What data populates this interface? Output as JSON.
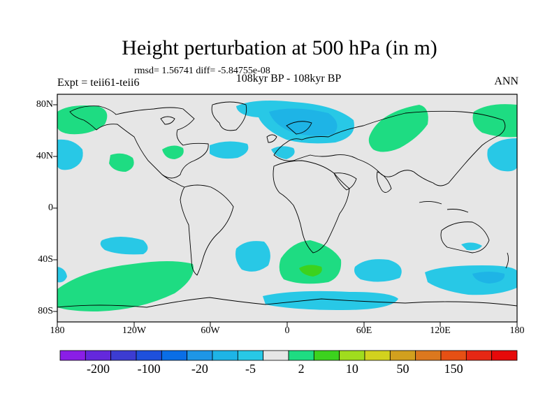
{
  "title": "Height perturbation at 500 hPa (in m)",
  "stats": "rmsd= 1.56741 diff= -5.84755e-08",
  "experiment": "Expt = teii61-teii6",
  "period": "108kyr BP - 108kyr BP",
  "season": "ANN",
  "lat_labels": [
    "80N",
    "40N",
    "0",
    "40S",
    "80S"
  ],
  "lon_labels": [
    "180",
    "120W",
    "60W",
    "0",
    "60E",
    "120E",
    "180"
  ],
  "colorbar": {
    "colors": [
      "#8a1ee6",
      "#6428dc",
      "#3c3cd2",
      "#1e50dc",
      "#0a6ee6",
      "#1e96e6",
      "#1eb4e6",
      "#28c8e6",
      "#e6e6e6",
      "#1edc82",
      "#3cd21e",
      "#a0dc1e",
      "#d2d21e",
      "#d2a01e",
      "#dc781e",
      "#e65014",
      "#e62814",
      "#e60a0a"
    ],
    "labels": [
      "-200",
      "-100",
      "-20",
      "-5",
      "2",
      "10",
      "50",
      "150"
    ]
  }
}
